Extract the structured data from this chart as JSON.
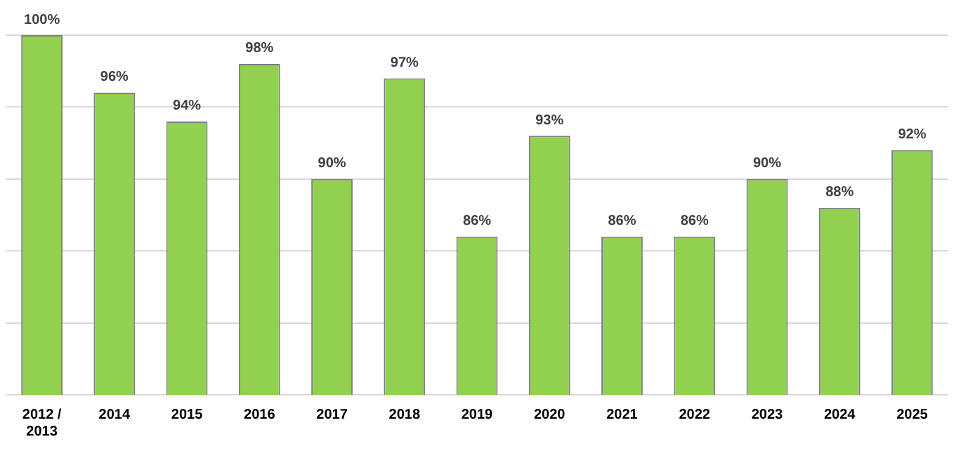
{
  "chart_data": {
    "type": "bar",
    "categories": [
      "2012 / 2013",
      "2014",
      "2015",
      "2016",
      "2017",
      "2018",
      "2019",
      "2020",
      "2021",
      "2022",
      "2023",
      "2024",
      "2025"
    ],
    "values": [
      100,
      96,
      94,
      98,
      90,
      97,
      86,
      93,
      86,
      86,
      90,
      88,
      92
    ],
    "value_labels": [
      "100%",
      "96%",
      "94%",
      "98%",
      "90%",
      "97%",
      "86%",
      "93%",
      "86%",
      "86%",
      "90%",
      "88%",
      "92%"
    ],
    "color": "#92d050",
    "ylim": [
      75,
      100
    ],
    "yticks": [
      {
        "value": 75,
        "label": null
      },
      {
        "value": 80,
        "label": null
      },
      {
        "value": 85,
        "label": null
      },
      {
        "value": 90,
        "label": null
      },
      {
        "value": 95,
        "label": null
      },
      {
        "value": 100,
        "label": null
      }
    ],
    "grid": "y",
    "tick_labels": "x"
  }
}
